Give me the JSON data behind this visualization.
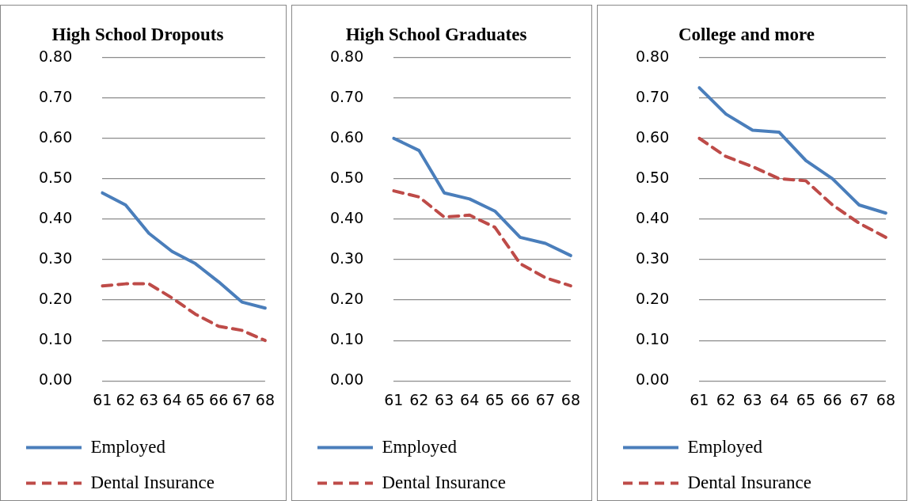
{
  "chart_data": [
    {
      "type": "line",
      "title": "High School Dropouts",
      "categories": [
        "61",
        "62",
        "63",
        "64",
        "65",
        "66",
        "67",
        "68"
      ],
      "series": [
        {
          "name": "Employed",
          "color": "#4a7ebb",
          "line_style": "solid",
          "values": [
            0.465,
            0.435,
            0.365,
            0.32,
            0.29,
            0.245,
            0.195,
            0.18
          ]
        },
        {
          "name": "Dental Insurance",
          "color": "#be4b48",
          "line_style": "dashed",
          "values": [
            0.235,
            0.24,
            0.24,
            0.205,
            0.165,
            0.135,
            0.125,
            0.1
          ]
        }
      ],
      "ylim": [
        0,
        0.8
      ],
      "yticks": [
        {
          "value": 0,
          "label": "0.00"
        },
        {
          "value": 0.1,
          "label": "0.10"
        },
        {
          "value": 0.2,
          "label": "0.20"
        },
        {
          "value": 0.3,
          "label": "0.30"
        },
        {
          "value": 0.4,
          "label": "0.40"
        },
        {
          "value": 0.5,
          "label": "0.50"
        },
        {
          "value": 0.6,
          "label": "0.60"
        },
        {
          "value": 0.7,
          "label": "0.70"
        },
        {
          "value": 0.8,
          "label": "0.80"
        }
      ],
      "grid": "y",
      "legend": "bottom",
      "marker": "none"
    },
    {
      "type": "line",
      "title": "High School Graduates",
      "categories": [
        "61",
        "62",
        "63",
        "64",
        "65",
        "66",
        "67",
        "68"
      ],
      "series": [
        {
          "name": "Employed",
          "color": "#4a7ebb",
          "line_style": "solid",
          "values": [
            0.6,
            0.57,
            0.465,
            0.45,
            0.42,
            0.355,
            0.34,
            0.31
          ]
        },
        {
          "name": "Dental Insurance",
          "color": "#be4b48",
          "line_style": "dashed",
          "values": [
            0.47,
            0.455,
            0.405,
            0.41,
            0.38,
            0.29,
            0.255,
            0.235
          ]
        }
      ],
      "ylim": [
        0,
        0.8
      ],
      "yticks": [
        {
          "value": 0,
          "label": "0.00"
        },
        {
          "value": 0.1,
          "label": "0.10"
        },
        {
          "value": 0.2,
          "label": "0.20"
        },
        {
          "value": 0.3,
          "label": "0.30"
        },
        {
          "value": 0.4,
          "label": "0.40"
        },
        {
          "value": 0.5,
          "label": "0.50"
        },
        {
          "value": 0.6,
          "label": "0.60"
        },
        {
          "value": 0.7,
          "label": "0.70"
        },
        {
          "value": 0.8,
          "label": "0.80"
        }
      ],
      "grid": "y",
      "legend": "bottom",
      "marker": "none"
    },
    {
      "type": "line",
      "title": "College and more",
      "categories": [
        "61",
        "62",
        "63",
        "64",
        "65",
        "66",
        "67",
        "68"
      ],
      "series": [
        {
          "name": "Employed",
          "color": "#4a7ebb",
          "line_style": "solid",
          "values": [
            0.725,
            0.66,
            0.62,
            0.615,
            0.545,
            0.5,
            0.435,
            0.415
          ]
        },
        {
          "name": "Dental Insurance",
          "color": "#be4b48",
          "line_style": "dashed",
          "values": [
            0.6,
            0.555,
            0.53,
            0.5,
            0.495,
            0.435,
            0.39,
            0.355
          ]
        }
      ],
      "ylim": [
        0,
        0.8
      ],
      "yticks": [
        {
          "value": 0,
          "label": "0.00"
        },
        {
          "value": 0.1,
          "label": "0.10"
        },
        {
          "value": 0.2,
          "label": "0.20"
        },
        {
          "value": 0.3,
          "label": "0.30"
        },
        {
          "value": 0.4,
          "label": "0.40"
        },
        {
          "value": 0.5,
          "label": "0.50"
        },
        {
          "value": 0.6,
          "label": "0.60"
        },
        {
          "value": 0.7,
          "label": "0.70"
        },
        {
          "value": 0.8,
          "label": "0.80"
        }
      ],
      "grid": "y",
      "legend": "bottom",
      "marker": "none"
    }
  ]
}
